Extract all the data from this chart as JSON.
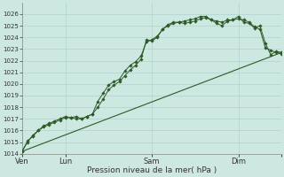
{
  "xlabel": "Pression niveau de la mer( hPa )",
  "bg_color": "#cce8e0",
  "grid_color": "#aacccc",
  "line_color": "#2d5a27",
  "ylim": [
    1014,
    1027
  ],
  "yticks": [
    1014,
    1015,
    1016,
    1017,
    1018,
    1019,
    1020,
    1021,
    1022,
    1023,
    1024,
    1025,
    1026
  ],
  "series1_x": [
    0,
    3,
    6,
    9,
    12,
    15,
    18,
    21,
    24,
    27,
    30,
    33,
    36,
    39,
    42,
    45,
    48,
    51,
    54,
    57,
    60,
    63,
    66,
    69,
    72,
    75,
    78,
    81,
    84,
    87,
    90,
    93,
    96,
    99,
    102,
    105,
    108,
    111,
    114,
    117,
    120,
    123,
    126,
    129,
    132,
    135,
    138,
    141,
    144
  ],
  "series1_y": [
    1014.2,
    1015.1,
    1015.5,
    1016.0,
    1016.3,
    1016.5,
    1016.7,
    1016.9,
    1017.1,
    1017.1,
    1017.0,
    1017.0,
    1017.2,
    1017.4,
    1018.0,
    1018.7,
    1019.5,
    1019.9,
    1020.2,
    1020.7,
    1021.2,
    1021.6,
    1022.1,
    1023.8,
    1023.7,
    1024.0,
    1024.7,
    1025.1,
    1025.3,
    1025.3,
    1025.4,
    1025.5,
    1025.6,
    1025.8,
    1025.8,
    1025.5,
    1025.4,
    1025.3,
    1025.5,
    1025.5,
    1025.8,
    1025.3,
    1025.2,
    1024.8,
    1025.0,
    1023.5,
    1022.5,
    1022.8,
    1022.7
  ],
  "series2_x": [
    0,
    3,
    6,
    9,
    12,
    15,
    18,
    21,
    24,
    27,
    30,
    33,
    36,
    39,
    42,
    45,
    48,
    51,
    54,
    57,
    60,
    63,
    66,
    69,
    72,
    75,
    78,
    81,
    84,
    87,
    90,
    93,
    96,
    99,
    102,
    105,
    108,
    111,
    114,
    117,
    120,
    123,
    126,
    129,
    132,
    135,
    138,
    141,
    144
  ],
  "series2_y": [
    1014.2,
    1015.0,
    1015.6,
    1016.0,
    1016.4,
    1016.6,
    1016.8,
    1017.0,
    1017.2,
    1017.1,
    1017.2,
    1017.0,
    1017.2,
    1017.4,
    1018.5,
    1019.2,
    1019.9,
    1020.2,
    1020.4,
    1021.1,
    1021.6,
    1021.9,
    1022.4,
    1023.6,
    1023.8,
    1024.1,
    1024.7,
    1025.0,
    1025.2,
    1025.3,
    1025.2,
    1025.3,
    1025.4,
    1025.6,
    1025.7,
    1025.5,
    1025.2,
    1025.0,
    1025.4,
    1025.5,
    1025.6,
    1025.5,
    1025.3,
    1024.9,
    1024.7,
    1023.1,
    1022.9,
    1022.7,
    1022.6
  ],
  "series3_x": [
    0,
    144
  ],
  "series3_y": [
    1014.2,
    1022.7
  ],
  "day_lines_x": [
    144
  ],
  "day_positions": [
    0,
    24,
    72,
    120,
    144
  ],
  "day_labels": [
    "Ven",
    "Lun",
    "Sam",
    "Dim",
    ""
  ],
  "xlim": [
    0,
    144
  ]
}
